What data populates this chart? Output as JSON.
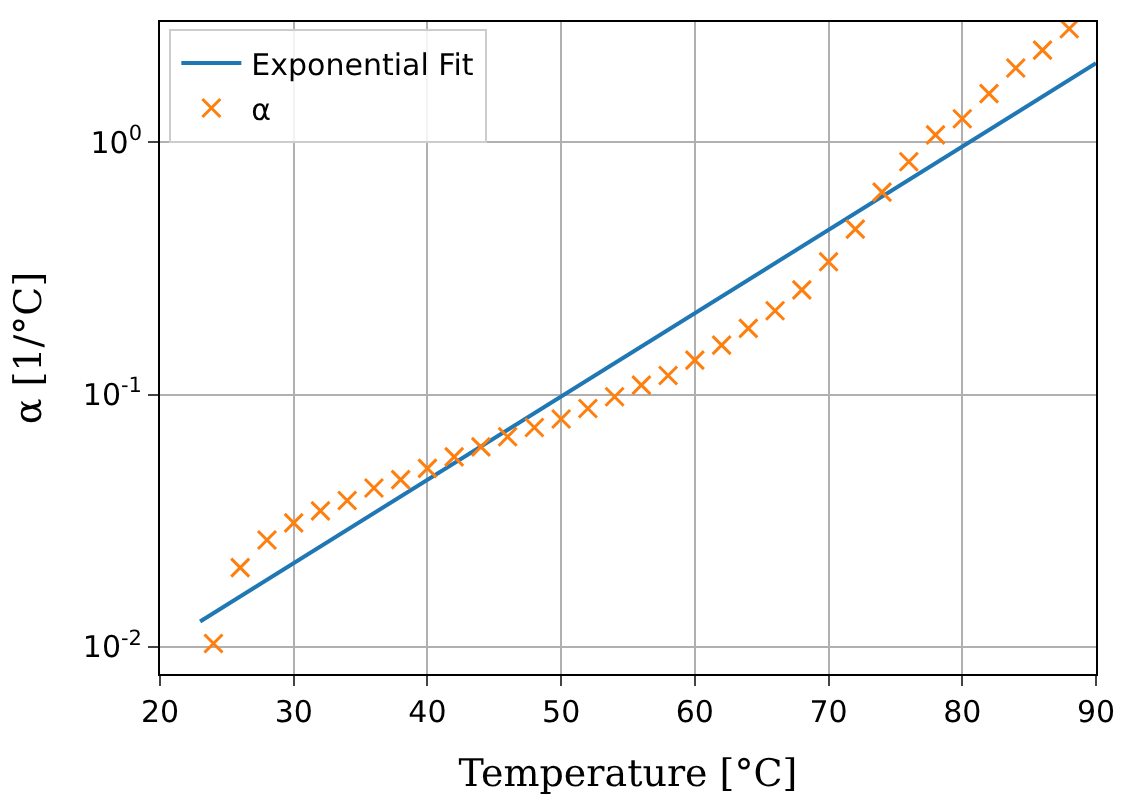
{
  "chart_data": {
    "type": "scatter",
    "xlabel": "Temperature [°C]",
    "ylabel": "α [1/°C]",
    "xlim": [
      20,
      90
    ],
    "xticks": [
      20,
      30,
      40,
      50,
      60,
      70,
      80,
      90
    ],
    "ylim": [
      0.0078,
      3.0
    ],
    "yticks": [
      {
        "value": 0.01,
        "label": "10$^{-2}$"
      },
      {
        "value": 0.1,
        "label": "10$^{-1}$"
      },
      {
        "value": 1,
        "label": "10$^{0}$"
      }
    ],
    "log": "y",
    "grid": true,
    "legend": "top left",
    "series": [
      {
        "name": "Exponential Fit",
        "type": "line",
        "color": "#1f77b4",
        "marker": "none",
        "line_style": "solid",
        "x": [
          23,
          90
        ],
        "values": [
          0.0126,
          2.06
        ]
      },
      {
        "name": "α",
        "color": "#ff7f0e",
        "marker": "cross",
        "x": [
          24,
          26,
          28,
          30,
          32,
          34,
          36,
          38,
          40,
          42,
          44,
          46,
          48,
          50,
          52,
          54,
          56,
          58,
          60,
          62,
          64,
          66,
          68,
          70,
          72,
          74,
          76,
          78,
          80,
          82,
          84,
          86,
          88
        ],
        "values": [
          0.0103,
          0.0206,
          0.0265,
          0.031,
          0.0346,
          0.038,
          0.0426,
          0.046,
          0.051,
          0.0566,
          0.062,
          0.068,
          0.074,
          0.08,
          0.088,
          0.098,
          0.109,
          0.119,
          0.137,
          0.157,
          0.183,
          0.215,
          0.26,
          0.336,
          0.453,
          0.635,
          0.838,
          1.07,
          1.24,
          1.56,
          1.97,
          2.32,
          2.82
        ]
      }
    ]
  }
}
